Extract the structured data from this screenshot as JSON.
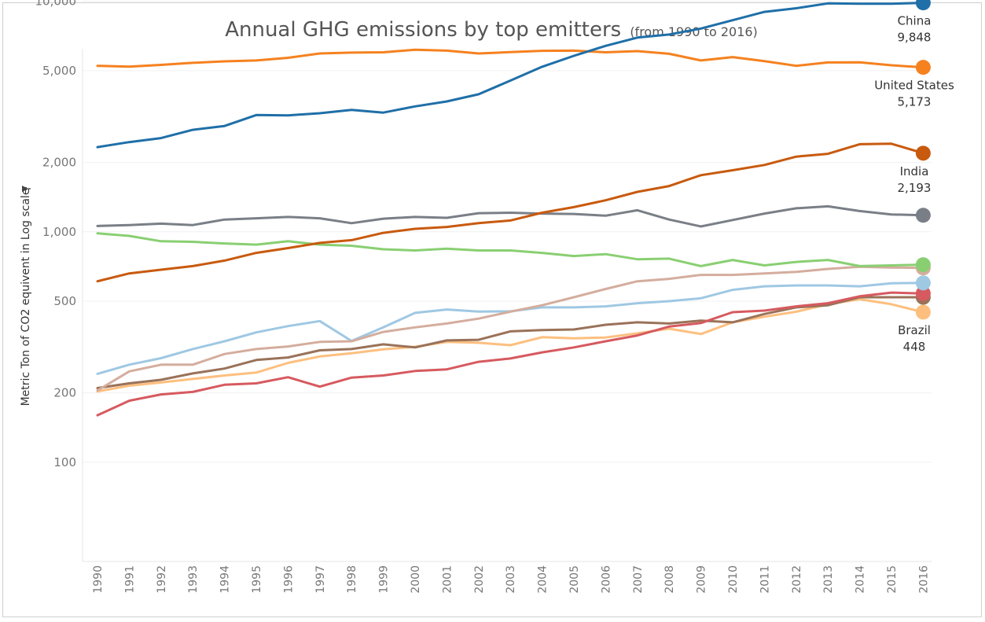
{
  "title": "Annual GHG emissions by top emitters",
  "subtitle": "(from 1990 to 2016)",
  "colors": {
    "China": "#1f6fa8",
    "United States": "#f5811f",
    "India": "#c85a0e",
    "Gray": "#7a7f87",
    "Green": "#89cf72",
    "Tan": "#d4ad9e",
    "LightBlue": "#9fc8e3",
    "Red": "#d65a5f",
    "Brown": "#9a7259",
    "Brazil": "#fdbf7f"
  },
  "chart_data": {
    "type": "line",
    "ylabel": "Metric Ton of CO2 equivent in Log scale",
    "yscale": "log",
    "ylim": [
      90,
      14000
    ],
    "yticks": [
      100,
      200,
      500,
      1000,
      2000,
      5000,
      10000
    ],
    "ytick_labels": [
      "100",
      "200",
      "500",
      "1,000",
      "2,000",
      "5,000",
      "10,000"
    ],
    "x": [
      "1990",
      "1991",
      "1992",
      "1993",
      "1994",
      "1995",
      "1996",
      "1997",
      "1998",
      "1999",
      "2000",
      "2001",
      "2002",
      "2003",
      "2004",
      "2005",
      "2006",
      "2007",
      "2008",
      "2009",
      "2010",
      "2011",
      "2012",
      "2013",
      "2014",
      "2015",
      "2016"
    ],
    "series": [
      {
        "key": "China",
        "values": [
          2330,
          2450,
          2550,
          2770,
          2880,
          3210,
          3200,
          3270,
          3380,
          3290,
          3500,
          3680,
          3950,
          4530,
          5200,
          5800,
          6410,
          6960,
          7180,
          7620,
          8280,
          9000,
          9330,
          9800,
          9760,
          9760,
          9848
        ]
      },
      {
        "key": "United States",
        "values": [
          5250,
          5210,
          5300,
          5410,
          5490,
          5540,
          5690,
          5940,
          5990,
          6010,
          6170,
          6110,
          5940,
          6020,
          6100,
          6110,
          6010,
          6080,
          5920,
          5540,
          5730,
          5500,
          5250,
          5430,
          5440,
          5280,
          5173
        ]
      },
      {
        "key": "India",
        "values": [
          610,
          660,
          685,
          710,
          750,
          810,
          850,
          895,
          920,
          990,
          1030,
          1050,
          1090,
          1120,
          1210,
          1280,
          1370,
          1490,
          1580,
          1760,
          1850,
          1950,
          2120,
          2180,
          2400,
          2410,
          2193
        ]
      },
      {
        "key": "Gray",
        "values": [
          1060,
          1070,
          1085,
          1070,
          1130,
          1145,
          1160,
          1145,
          1090,
          1140,
          1160,
          1150,
          1205,
          1210,
          1200,
          1195,
          1175,
          1240,
          1130,
          1055,
          1125,
          1200,
          1265,
          1290,
          1230,
          1190,
          1180
        ]
      },
      {
        "key": "Green",
        "values": [
          985,
          960,
          910,
          905,
          890,
          880,
          910,
          880,
          870,
          840,
          830,
          845,
          830,
          830,
          810,
          785,
          800,
          760,
          765,
          710,
          755,
          715,
          740,
          755,
          710,
          715,
          720
        ]
      },
      {
        "key": "Tan",
        "values": [
          205,
          248,
          265,
          265,
          295,
          310,
          318,
          333,
          335,
          368,
          385,
          400,
          420,
          450,
          480,
          520,
          565,
          610,
          625,
          650,
          650,
          660,
          670,
          690,
          705,
          700,
          697
        ]
      },
      {
        "key": "LightBlue",
        "values": [
          242,
          265,
          283,
          310,
          335,
          366,
          390,
          410,
          336,
          385,
          445,
          460,
          451,
          452,
          470,
          470,
          475,
          490,
          500,
          515,
          560,
          580,
          585,
          585,
          580,
          598,
          600
        ]
      },
      {
        "key": "Red",
        "values": [
          160,
          185,
          197,
          202,
          217,
          220,
          234,
          213,
          233,
          238,
          249,
          253,
          273,
          282,
          300,
          315,
          335,
          355,
          388,
          402,
          448,
          455,
          475,
          490,
          525,
          545,
          540
        ]
      },
      {
        "key": "Brown",
        "values": [
          210,
          220,
          228,
          243,
          255,
          278,
          285,
          306,
          310,
          325,
          315,
          338,
          340,
          370,
          375,
          377,
          395,
          405,
          400,
          412,
          405,
          440,
          470,
          480,
          520,
          520,
          520
        ]
      },
      {
        "key": "Brazil",
        "values": [
          203,
          215,
          222,
          230,
          238,
          245,
          270,
          288,
          297,
          309,
          317,
          333,
          330,
          322,
          349,
          345,
          348,
          363,
          380,
          360,
          405,
          428,
          450,
          485,
          510,
          485,
          448
        ]
      }
    ],
    "end_labels": [
      {
        "key": "China",
        "name": "China",
        "value": "9,848"
      },
      {
        "key": "United States",
        "name": "United States",
        "value": "5,173"
      },
      {
        "key": "India",
        "name": "India",
        "value": "2,193"
      },
      {
        "key": "Brazil",
        "name": "Brazil",
        "value": "448"
      }
    ],
    "grid": true,
    "legend": "none"
  }
}
